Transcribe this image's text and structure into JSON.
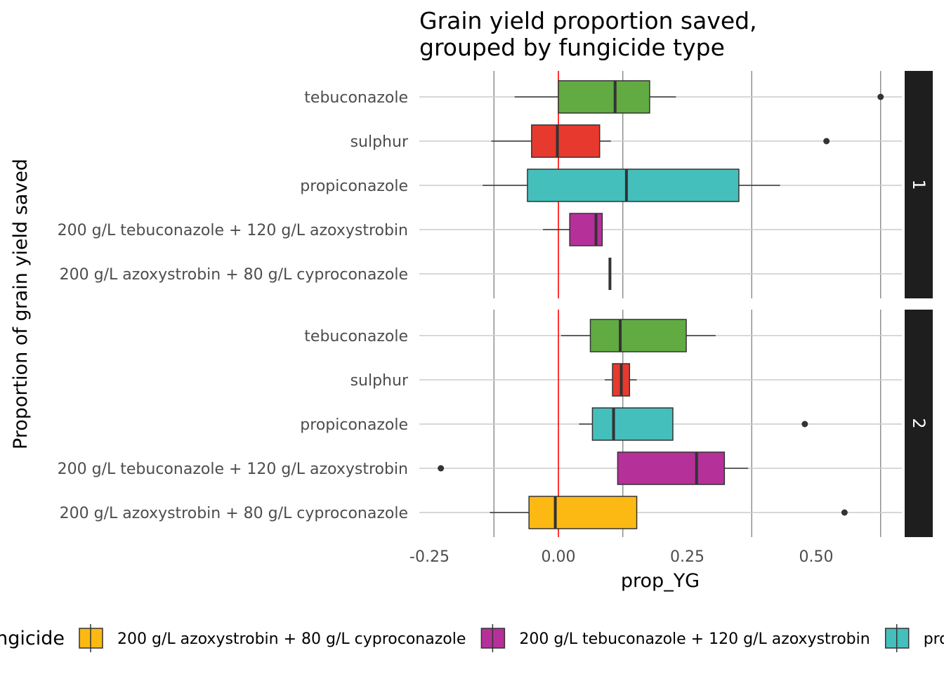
{
  "chart_data": {
    "type": "boxplot",
    "title": [
      "Grain yield proportion saved,",
      "grouped by fungicide type"
    ],
    "xlabel": "prop_YG",
    "ylabel": "Proportion of grain yield saved",
    "xlim": [
      -0.27,
      0.67
    ],
    "xticks": [
      -0.25,
      0.0,
      0.25,
      0.5
    ],
    "xtick_labels": [
      "-0.25",
      "0.00",
      "0.25",
      "0.50"
    ],
    "reference_line": {
      "x": 0,
      "color": "#ff0000"
    },
    "categories": [
      "tebuconazole",
      "sulphur",
      "propiconazole",
      "200 g/L tebuconazole + 120 g/L azoxystrobin",
      "200 g/L azoxystrobin + 80 g/L cyproconazole"
    ],
    "legend": {
      "title": "fungicide",
      "position": "bottom",
      "entries": [
        {
          "label": "200 g/L azoxystrobin + 80 g/L cyproconazole",
          "color": "#FDB913"
        },
        {
          "label": "200 g/L tebuconazole + 120 g/L azoxystrobin",
          "color": "#B6309A"
        },
        {
          "label": "propiconazole",
          "color": "#45BFBC"
        }
      ]
    },
    "facets": [
      {
        "strip": "1",
        "boxes": [
          {
            "category": "tebuconazole",
            "color": "#62AB43",
            "whisker_low": -0.085,
            "q1": 0.0,
            "median": 0.11,
            "q3": 0.177,
            "whisker_high": 0.228,
            "outliers": [
              0.625
            ]
          },
          {
            "category": "sulphur",
            "color": "#E8392E",
            "whisker_low": -0.13,
            "q1": -0.052,
            "median": -0.002,
            "q3": 0.08,
            "whisker_high": 0.102,
            "outliers": [
              0.52
            ]
          },
          {
            "category": "propiconazole",
            "color": "#45BFBC",
            "whisker_low": -0.147,
            "q1": -0.06,
            "median": 0.132,
            "q3": 0.35,
            "whisker_high": 0.43,
            "outliers": []
          },
          {
            "category": "200 g/L tebuconazole + 120 g/L azoxystrobin",
            "color": "#B6309A",
            "whisker_low": -0.03,
            "q1": 0.022,
            "median": 0.073,
            "q3": 0.085,
            "whisker_high": 0.085,
            "outliers": []
          },
          {
            "category": "200 g/L azoxystrobin + 80 g/L cyproconazole",
            "color": "#FDB913",
            "whisker_low": 0.1,
            "q1": 0.1,
            "median": 0.1,
            "q3": 0.1,
            "whisker_high": 0.1,
            "outliers": []
          }
        ]
      },
      {
        "strip": "2",
        "boxes": [
          {
            "category": "tebuconazole",
            "color": "#62AB43",
            "whisker_low": 0.005,
            "q1": 0.062,
            "median": 0.12,
            "q3": 0.248,
            "whisker_high": 0.305,
            "outliers": []
          },
          {
            "category": "sulphur",
            "color": "#E8392E",
            "whisker_low": 0.09,
            "q1": 0.105,
            "median": 0.122,
            "q3": 0.138,
            "whisker_high": 0.152,
            "outliers": []
          },
          {
            "category": "propiconazole",
            "color": "#45BFBC",
            "whisker_low": 0.04,
            "q1": 0.066,
            "median": 0.107,
            "q3": 0.222,
            "whisker_high": 0.222,
            "outliers": [
              0.478
            ]
          },
          {
            "category": "200 g/L tebuconazole + 120 g/L azoxystrobin",
            "color": "#B6309A",
            "whisker_low": 0.115,
            "q1": 0.115,
            "median": 0.268,
            "q3": 0.322,
            "whisker_high": 0.368,
            "outliers": [
              -0.228
            ]
          },
          {
            "category": "200 g/L azoxystrobin + 80 g/L cyproconazole",
            "color": "#FDB913",
            "whisker_low": -0.133,
            "q1": -0.057,
            "median": -0.006,
            "q3": 0.152,
            "whisker_high": 0.152,
            "outliers": [
              0.555
            ]
          }
        ]
      }
    ]
  }
}
